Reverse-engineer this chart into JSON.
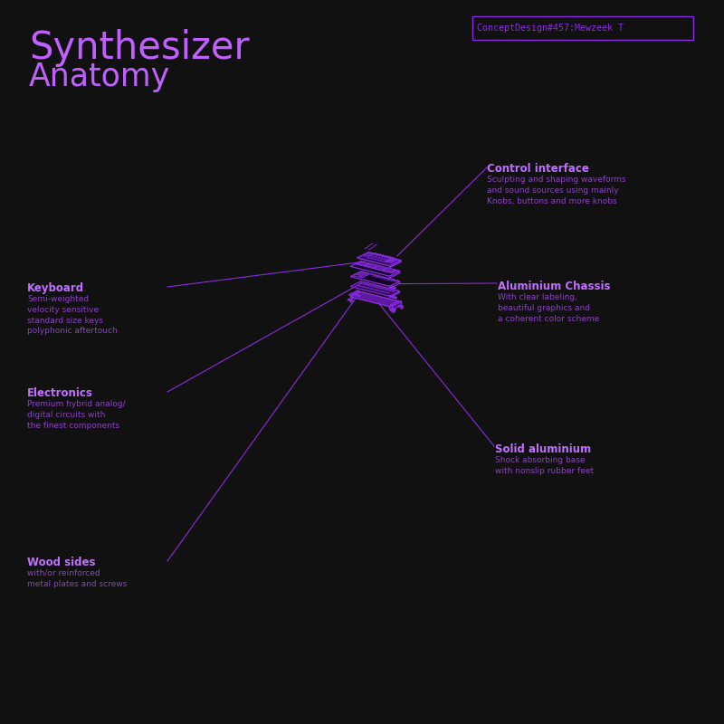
{
  "bg_color": "#111111",
  "purple_bright": "#9b30ff",
  "purple_mid": "#6b18bf",
  "purple_dark": "#4a0e88",
  "purple_fill": "#5c1a9e",
  "purple_light": "#c060ff",
  "purple_line": "#8a2be2",
  "purple_dim": "#2d0855",
  "purple_base": "#7b20df",
  "title_line1": "Synthesizer",
  "title_line2": "Anatomy",
  "concept_label": "ConceptDesign#457:Mewzeek T",
  "label_control": "Control interface",
  "label_control_sub": "Sculpting and shaping waveforms\nand sound sources using mainly\nKnobs, buttons and more knobs",
  "label_chassis": "Aluminium Chassis",
  "label_chassis_sub": "With clear labeling,\nbeautiful graphics and\na coherent color scheme",
  "label_keyboard": "Keyboard",
  "label_keyboard_sub": "Semi-weighted\nvelocity sensitive\nstandard size keys\npolyphonic aftertouch",
  "label_electronics": "Electronics",
  "label_electronics_sub": "Premium hybrid analog/\ndigital circuits with\nthe finest components",
  "label_solid": "Solid aluminium",
  "label_solid_sub": "Shock absorbing base\nwith nonslip rubber feet",
  "label_wood": "Wood sides",
  "label_wood_sub": "with/or reinforced\nmetal plates and screws"
}
